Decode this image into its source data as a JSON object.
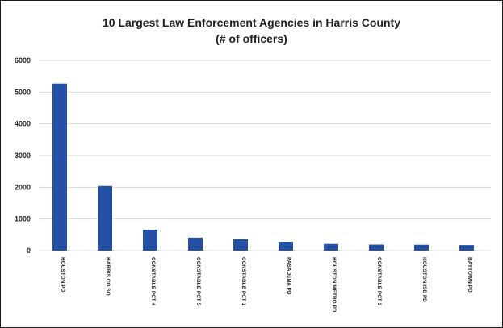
{
  "chart_data": {
    "type": "bar",
    "title": "10 Largest Law Enforcement Agencies in Harris County",
    "subtitle": "(# of officers)",
    "categories": [
      "HOUSTON PD",
      "HARRIS CO SO",
      "CONSTABLE PCT 4",
      "CONSTABLE PCT 5",
      "CONSTABLE PCT 1",
      "PASADENA PD",
      "HOUSTON METRO PD",
      "CONSTABLE PCT 3",
      "HOUSTON ISD PD",
      "BAYTOWN PD"
    ],
    "values": [
      5270,
      2040,
      660,
      410,
      360,
      280,
      210,
      190,
      185,
      175
    ],
    "yticks": [
      "0",
      "1000",
      "2000",
      "3000",
      "4000",
      "5000",
      "6000"
    ],
    "ylim": [
      0,
      6000
    ],
    "grid": true,
    "bar_color": "#2451a6",
    "grid_color": "#d9d9d9",
    "xlabel": "",
    "ylabel": ""
  }
}
